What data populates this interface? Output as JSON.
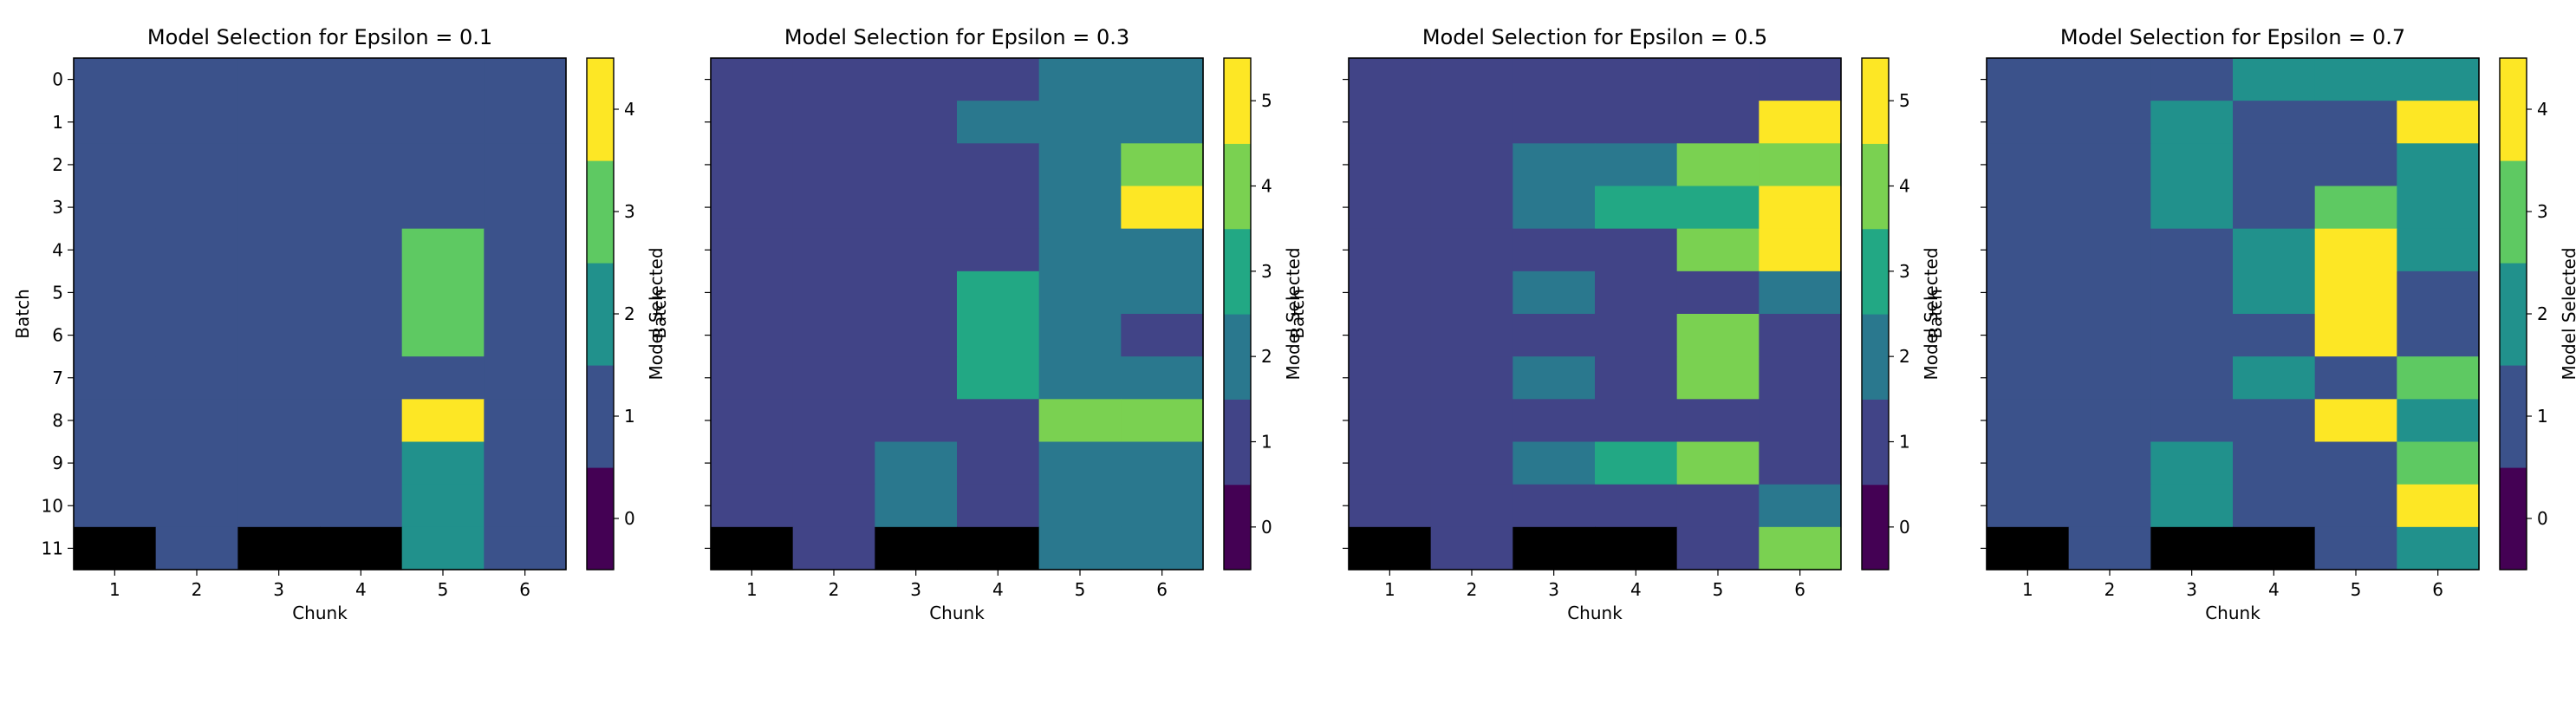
{
  "chart_data": [
    {
      "type": "heatmap",
      "title": "Model Selection for Epsilon = 0.1",
      "xlabel": "Chunk",
      "ylabel": "Batch",
      "x_categories": [
        "1",
        "2",
        "3",
        "4",
        "5",
        "6"
      ],
      "y_categories": [
        "0",
        "1",
        "2",
        "3",
        "4",
        "5",
        "6",
        "7",
        "8",
        "9",
        "10",
        "11"
      ],
      "values": [
        [
          1,
          1,
          1,
          1,
          1,
          1
        ],
        [
          1,
          1,
          1,
          1,
          1,
          1
        ],
        [
          1,
          1,
          1,
          1,
          1,
          1
        ],
        [
          1,
          1,
          1,
          1,
          1,
          1
        ],
        [
          1,
          1,
          1,
          1,
          3,
          1
        ],
        [
          1,
          1,
          1,
          1,
          3,
          1
        ],
        [
          1,
          1,
          1,
          1,
          3,
          1
        ],
        [
          1,
          1,
          1,
          1,
          1,
          1
        ],
        [
          1,
          1,
          1,
          1,
          4,
          1
        ],
        [
          1,
          1,
          1,
          1,
          2,
          1
        ],
        [
          1,
          1,
          1,
          1,
          2,
          1
        ],
        [
          null,
          1,
          null,
          null,
          2,
          1
        ]
      ],
      "missing_color": "#000000",
      "colorbar": {
        "label": "Model Selected",
        "ticks": [
          "0",
          "1",
          "2",
          "3",
          "4"
        ],
        "colors": [
          "#440154",
          "#3b528b",
          "#21918c",
          "#5ec962",
          "#fde725"
        ]
      }
    },
    {
      "type": "heatmap",
      "title": "Model Selection for Epsilon = 0.3",
      "xlabel": "Chunk",
      "ylabel": "Batch",
      "x_categories": [
        "1",
        "2",
        "3",
        "4",
        "5",
        "6"
      ],
      "y_categories": [
        "0",
        "1",
        "2",
        "3",
        "4",
        "5",
        "6",
        "7",
        "8",
        "9",
        "10",
        "11"
      ],
      "values": [
        [
          1,
          1,
          1,
          1,
          2,
          2
        ],
        [
          1,
          1,
          1,
          2,
          2,
          2
        ],
        [
          1,
          1,
          1,
          1,
          2,
          4
        ],
        [
          1,
          1,
          1,
          1,
          2,
          5
        ],
        [
          1,
          1,
          1,
          1,
          2,
          2
        ],
        [
          1,
          1,
          1,
          3,
          2,
          2
        ],
        [
          1,
          1,
          1,
          3,
          2,
          1
        ],
        [
          1,
          1,
          1,
          3,
          2,
          2
        ],
        [
          1,
          1,
          1,
          1,
          4,
          4
        ],
        [
          1,
          1,
          2,
          1,
          2,
          2
        ],
        [
          1,
          1,
          2,
          1,
          2,
          2
        ],
        [
          null,
          1,
          null,
          null,
          2,
          2
        ]
      ],
      "missing_color": "#000000",
      "colorbar": {
        "label": "Model Selected",
        "ticks": [
          "0",
          "1",
          "2",
          "3",
          "4",
          "5"
        ],
        "colors": [
          "#440154",
          "#414487",
          "#2a788e",
          "#22a884",
          "#7ad151",
          "#fde725"
        ]
      }
    },
    {
      "type": "heatmap",
      "title": "Model Selection for Epsilon = 0.5",
      "xlabel": "Chunk",
      "ylabel": "Batch",
      "x_categories": [
        "1",
        "2",
        "3",
        "4",
        "5",
        "6"
      ],
      "y_categories": [
        "0",
        "1",
        "2",
        "3",
        "4",
        "5",
        "6",
        "7",
        "8",
        "9",
        "10",
        "11"
      ],
      "values": [
        [
          1,
          1,
          1,
          1,
          1,
          1
        ],
        [
          1,
          1,
          1,
          1,
          1,
          5
        ],
        [
          1,
          1,
          2,
          2,
          4,
          4
        ],
        [
          1,
          1,
          2,
          3,
          3,
          5
        ],
        [
          1,
          1,
          1,
          1,
          4,
          5
        ],
        [
          1,
          1,
          2,
          1,
          1,
          2
        ],
        [
          1,
          1,
          1,
          1,
          4,
          1
        ],
        [
          1,
          1,
          2,
          1,
          4,
          1
        ],
        [
          1,
          1,
          1,
          1,
          1,
          1
        ],
        [
          1,
          1,
          2,
          3,
          4,
          1
        ],
        [
          1,
          1,
          1,
          1,
          1,
          2
        ],
        [
          null,
          1,
          null,
          null,
          1,
          4
        ]
      ],
      "missing_color": "#000000",
      "colorbar": {
        "label": "Model Selected",
        "ticks": [
          "0",
          "1",
          "2",
          "3",
          "4",
          "5"
        ],
        "colors": [
          "#440154",
          "#414487",
          "#2a788e",
          "#22a884",
          "#7ad151",
          "#fde725"
        ]
      }
    },
    {
      "type": "heatmap",
      "title": "Model Selection for Epsilon = 0.7",
      "xlabel": "Chunk",
      "ylabel": "Batch",
      "x_categories": [
        "1",
        "2",
        "3",
        "4",
        "5",
        "6"
      ],
      "y_categories": [
        "0",
        "1",
        "2",
        "3",
        "4",
        "5",
        "6",
        "7",
        "8",
        "9",
        "10",
        "11"
      ],
      "values": [
        [
          1,
          1,
          1,
          2,
          2,
          2
        ],
        [
          1,
          1,
          2,
          1,
          1,
          4
        ],
        [
          1,
          1,
          2,
          1,
          1,
          2
        ],
        [
          1,
          1,
          2,
          1,
          3,
          2
        ],
        [
          1,
          1,
          1,
          2,
          4,
          2
        ],
        [
          1,
          1,
          1,
          2,
          4,
          1
        ],
        [
          1,
          1,
          1,
          1,
          4,
          1
        ],
        [
          1,
          1,
          1,
          2,
          1,
          3
        ],
        [
          1,
          1,
          1,
          1,
          4,
          2
        ],
        [
          1,
          1,
          2,
          1,
          1,
          3
        ],
        [
          1,
          1,
          2,
          1,
          1,
          4
        ],
        [
          null,
          1,
          null,
          null,
          1,
          2
        ]
      ],
      "missing_color": "#000000",
      "colorbar": {
        "label": "Model Selected",
        "ticks": [
          "0",
          "1",
          "2",
          "3",
          "4"
        ],
        "colors": [
          "#440154",
          "#3b528b",
          "#21918c",
          "#5ec962",
          "#fde725"
        ]
      }
    }
  ]
}
